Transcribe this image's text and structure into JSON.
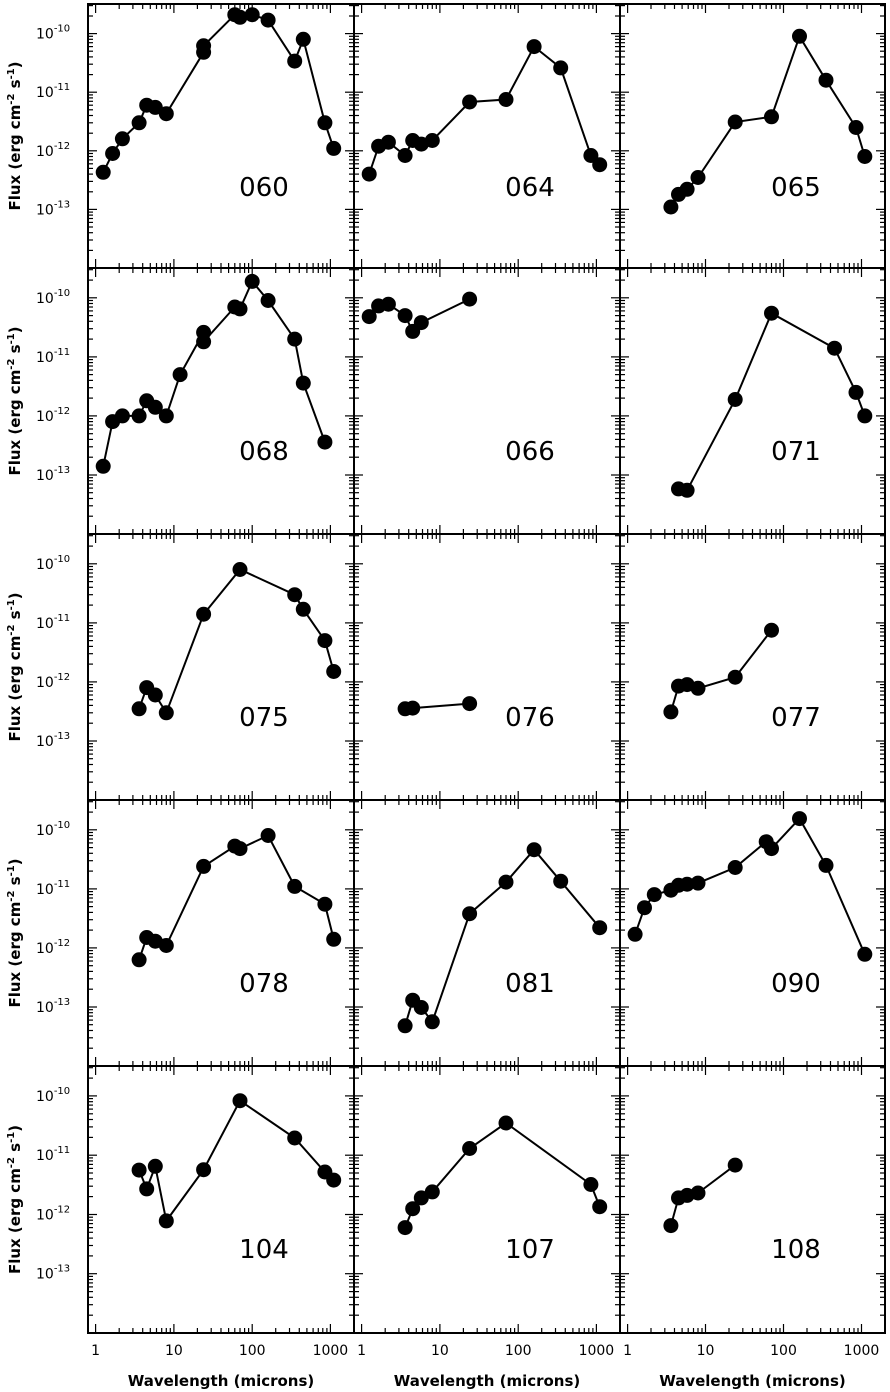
{
  "chart_data": {
    "type": "scatter",
    "xlabel": "Wavelength (microns)",
    "ylabel": "Flux (erg cm",
    "ylabel_sup1": "-2",
    "ylabel_mid": " s",
    "ylabel_sup2": "-1",
    "ylabel_end": ")",
    "x_scale": "log",
    "y_scale": "log",
    "xlim": [
      0.8,
      2000
    ],
    "ylim": [
      1e-14,
      3.2e-10
    ],
    "x_tick_labels": [
      "1",
      "10",
      "100",
      "1000"
    ],
    "y_tick_labels": [
      {
        "base": "10",
        "exp": "-10"
      },
      {
        "base": "10",
        "exp": "-11"
      },
      {
        "base": "10",
        "exp": "-12"
      },
      {
        "base": "10",
        "exp": "-13"
      }
    ],
    "grid": false,
    "panels": [
      {
        "label": "060",
        "x": [
          1.25,
          1.65,
          2.2,
          3.6,
          4.5,
          5.8,
          8.0,
          24,
          24,
          60,
          70,
          100,
          160,
          350,
          450,
          850,
          1100
        ],
        "y": [
          4.3e-13,
          9e-13,
          1.6e-12,
          3e-12,
          6e-12,
          5.5e-12,
          4.3e-12,
          4.8e-11,
          6.2e-11,
          2.1e-10,
          1.9e-10,
          2.1e-10,
          1.7e-10,
          3.4e-11,
          8e-11,
          3e-12,
          1.1e-12
        ]
      },
      {
        "label": "064",
        "x": [
          1.25,
          1.65,
          2.2,
          3.6,
          4.5,
          5.8,
          8.0,
          24,
          70,
          160,
          350,
          850,
          1100
        ],
        "y": [
          4e-13,
          1.2e-12,
          1.4e-12,
          8.3e-13,
          1.5e-12,
          1.3e-12,
          1.5e-12,
          6.8e-12,
          7.5e-12,
          6e-11,
          2.6e-11,
          8.3e-13,
          5.8e-13
        ]
      },
      {
        "label": "065",
        "x": [
          3.6,
          4.5,
          5.8,
          8.0,
          24,
          70,
          160,
          350,
          850,
          1100
        ],
        "y": [
          1.1e-13,
          1.8e-13,
          2.2e-13,
          3.5e-13,
          3.1e-12,
          3.8e-12,
          9e-11,
          1.6e-11,
          2.5e-12,
          8e-13
        ]
      },
      {
        "label": "068",
        "x": [
          1.25,
          1.65,
          2.2,
          3.6,
          4.5,
          5.8,
          8.0,
          12,
          24,
          24,
          60,
          70,
          100,
          160,
          350,
          450,
          850
        ],
        "y": [
          1.4e-13,
          8e-13,
          1e-12,
          1e-12,
          1.8e-12,
          1.4e-12,
          1e-12,
          5e-12,
          2.6e-11,
          1.8e-11,
          7e-11,
          6.5e-11,
          1.9e-10,
          9e-11,
          2e-11,
          3.6e-12,
          3.6e-13
        ]
      },
      {
        "label": "066",
        "x": [
          1.25,
          1.65,
          2.2,
          3.6,
          4.5,
          5.8,
          24
        ],
        "y": [
          4.8e-11,
          7.3e-11,
          7.8e-11,
          5e-11,
          2.7e-11,
          3.8e-11,
          9.5e-11
        ]
      },
      {
        "label": "071",
        "x": [
          4.5,
          5.8,
          24,
          70,
          450,
          850,
          1100
        ],
        "y": [
          5.8e-14,
          5.5e-14,
          1.9e-12,
          5.5e-11,
          1.4e-11,
          2.5e-12,
          1e-12
        ]
      },
      {
        "label": "075",
        "x": [
          3.6,
          4.5,
          5.8,
          8.0,
          24,
          70,
          350,
          450,
          850,
          1100
        ],
        "y": [
          3.5e-13,
          8e-13,
          6e-13,
          3e-13,
          1.4e-11,
          8e-11,
          3e-11,
          1.7e-11,
          5e-12,
          1.5e-12
        ]
      },
      {
        "label": "076",
        "x": [
          3.6,
          4.5,
          24
        ],
        "y": [
          3.5e-13,
          3.6e-13,
          4.3e-13
        ]
      },
      {
        "label": "077",
        "x": [
          3.6,
          4.5,
          5.8,
          8.0,
          24,
          70
        ],
        "y": [
          3.1e-13,
          8.5e-13,
          9e-13,
          7.8e-13,
          1.2e-12,
          7.5e-12
        ]
      },
      {
        "label": "078",
        "x": [
          3.6,
          4.5,
          5.8,
          8.0,
          24,
          60,
          70,
          160,
          350,
          850,
          1100
        ],
        "y": [
          6.3e-13,
          1.5e-12,
          1.3e-12,
          1.1e-12,
          2.4e-11,
          5.3e-11,
          4.8e-11,
          8e-11,
          1.1e-11,
          5.5e-12,
          1.4e-12
        ]
      },
      {
        "label": "081",
        "x": [
          3.6,
          4.5,
          5.8,
          8.0,
          24,
          70,
          160,
          350,
          1100
        ],
        "y": [
          4.8e-14,
          1.3e-13,
          9.8e-14,
          5.6e-14,
          3.8e-12,
          1.3e-11,
          4.6e-11,
          1.35e-11,
          2.2e-12
        ]
      },
      {
        "label": "090",
        "x": [
          1.25,
          1.65,
          2.2,
          3.6,
          4.5,
          5.8,
          8.0,
          24,
          60,
          70,
          160,
          350,
          1100
        ],
        "y": [
          1.7e-12,
          4.8e-12,
          8e-12,
          9.5e-12,
          1.15e-11,
          1.2e-11,
          1.25e-11,
          2.3e-11,
          6.3e-11,
          4.8e-11,
          1.55e-10,
          2.5e-11,
          7.8e-13
        ]
      },
      {
        "label": "104",
        "x": [
          3.6,
          4.5,
          5.8,
          8.0,
          24,
          70,
          350,
          850,
          1100
        ],
        "y": [
          5.6e-12,
          2.7e-12,
          6.5e-12,
          7.8e-13,
          5.7e-12,
          8.3e-11,
          1.95e-11,
          5.2e-12,
          3.8e-12
        ]
      },
      {
        "label": "107",
        "x": [
          3.6,
          4.5,
          5.8,
          8.0,
          24,
          70,
          850,
          1100
        ],
        "y": [
          6e-13,
          1.25e-12,
          1.9e-12,
          2.4e-12,
          1.3e-11,
          3.5e-11,
          3.2e-12,
          1.35e-12
        ]
      },
      {
        "label": "108",
        "x": [
          3.6,
          4.5,
          5.8,
          8.0,
          24
        ],
        "y": [
          6.5e-13,
          1.9e-12,
          2.1e-12,
          2.3e-12,
          6.8e-12
        ]
      }
    ]
  }
}
